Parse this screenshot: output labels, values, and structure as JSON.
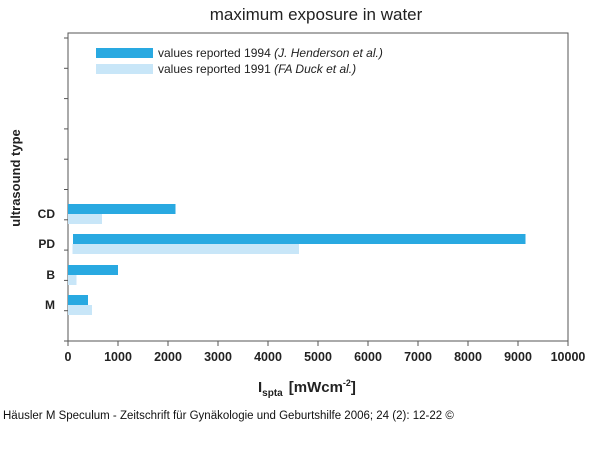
{
  "chart_data": {
    "type": "bar",
    "orientation": "horizontal",
    "title": "maximum exposure in water",
    "ylabel": "ultrasound type",
    "xlabel": {
      "main": "I",
      "subscript": "spta",
      "unit_main": "[mWcm",
      "unit_sup": "-2",
      "unit_end": "]"
    },
    "categories": [
      "M",
      "B",
      "PD",
      "CD"
    ],
    "xlim": [
      0,
      10000
    ],
    "xticks": [
      0,
      1000,
      2000,
      3000,
      4000,
      5000,
      6000,
      7000,
      8000,
      9000,
      10000
    ],
    "grid": false,
    "legend_position": "top-left",
    "series": [
      {
        "name": "values reported 1994",
        "name_italic": "(J. Henderson et al.)",
        "color": "#29a9e1",
        "values": [
          {
            "start": 0,
            "end": 400
          },
          {
            "start": 0,
            "end": 1000
          },
          {
            "start": 100,
            "end": 9150
          },
          {
            "start": 0,
            "end": 2150
          }
        ]
      },
      {
        "name": "values reported 1991",
        "name_italic": "(FA Duck et al.)",
        "color": "#c8e6f8",
        "values": [
          {
            "start": 0,
            "end": 480
          },
          {
            "start": 0,
            "end": 170
          },
          {
            "start": 90,
            "end": 4620
          },
          {
            "start": 0,
            "end": 680
          }
        ]
      }
    ]
  },
  "caption": "Häusler M Speculum - Zeitschrift für Gynäkologie und Geburtshilfe 2006; 24 (2): 12-22 ©"
}
